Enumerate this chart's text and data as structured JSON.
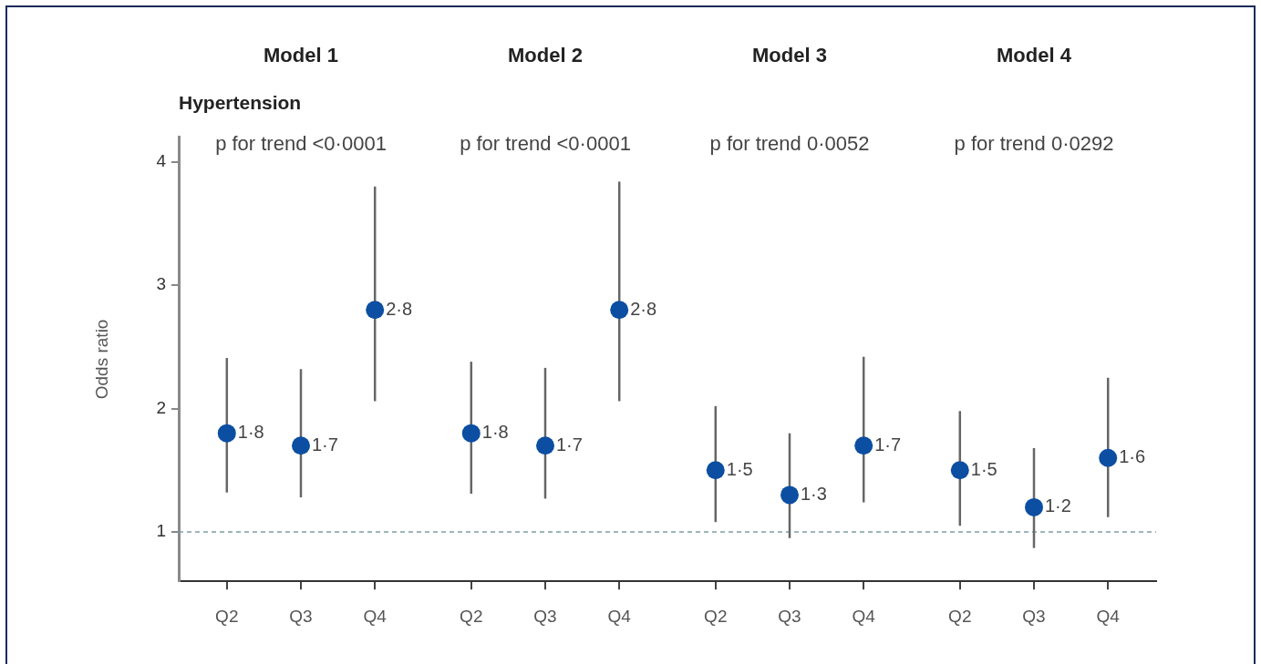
{
  "chart_data": {
    "type": "scatter",
    "title": "Hypertension",
    "ylabel": "Odds ratio",
    "categories": [
      "Q2",
      "Q3",
      "Q4",
      "Q2",
      "Q3",
      "Q4",
      "Q2",
      "Q3",
      "Q4",
      "Q2",
      "Q3",
      "Q4"
    ],
    "series": [
      {
        "color": "#0b4ea2",
        "values": [
          1.8,
          1.7,
          2.8,
          null,
          null,
          null,
          null,
          null,
          null,
          null,
          null,
          null
        ],
        "errors": [
          [
            1.32,
            2.41
          ],
          [
            1.28,
            2.32
          ],
          [
            2.06,
            3.8
          ],
          null,
          null,
          null,
          null,
          null,
          null,
          null,
          null,
          null
        ],
        "value_labels": [
          "1·8",
          "1·7",
          "2·8",
          null,
          null,
          null,
          null,
          null,
          null,
          null,
          null,
          null
        ]
      },
      {
        "color": "#0b4ea2",
        "values": [
          null,
          null,
          null,
          1.8,
          1.7,
          2.8,
          null,
          null,
          null,
          null,
          null,
          null
        ],
        "errors": [
          null,
          null,
          null,
          [
            1.31,
            2.38
          ],
          [
            1.27,
            2.33
          ],
          [
            2.06,
            3.84
          ],
          null,
          null,
          null,
          null,
          null,
          null
        ],
        "value_labels": [
          null,
          null,
          null,
          "1·8",
          "1·7",
          "2·8",
          null,
          null,
          null,
          null,
          null,
          null
        ]
      },
      {
        "color": "#0b4ea2",
        "values": [
          null,
          null,
          null,
          null,
          null,
          null,
          1.5,
          1.3,
          1.7,
          null,
          null,
          null
        ],
        "errors": [
          null,
          null,
          null,
          null,
          null,
          null,
          [
            1.08,
            2.02
          ],
          [
            0.95,
            1.8
          ],
          [
            1.24,
            2.42
          ],
          null,
          null,
          null
        ],
        "value_labels": [
          null,
          null,
          null,
          null,
          null,
          null,
          "1·5",
          "1·3",
          "1·7",
          null,
          null,
          null
        ]
      },
      {
        "color": "#0b4ea2",
        "values": [
          null,
          null,
          null,
          null,
          null,
          null,
          null,
          null,
          null,
          1.5,
          1.2,
          1.6
        ],
        "errors": [
          null,
          null,
          null,
          null,
          null,
          null,
          null,
          null,
          null,
          [
            1.05,
            1.98
          ],
          [
            0.87,
            1.68
          ],
          [
            1.12,
            2.25
          ]
        ],
        "value_labels": [
          null,
          null,
          null,
          null,
          null,
          null,
          null,
          null,
          null,
          "1·5",
          "1·2",
          "1·6"
        ]
      }
    ],
    "marker": "circle",
    "ylim": [
      0.6,
      4.2
    ],
    "yticks": [
      1,
      2,
      3,
      4
    ],
    "ref_lines": [
      {
        "axis": "y",
        "value": 1,
        "line_style": "dashed",
        "color": "#7f9ea5"
      }
    ],
    "annotations": [
      "Model 1",
      "Model 2",
      "Model 3",
      "Model 4",
      "p for trend <0·0001",
      "p for trend <0·0001",
      "p for trend 0·0052",
      "p for trend 0·0292"
    ]
  }
}
